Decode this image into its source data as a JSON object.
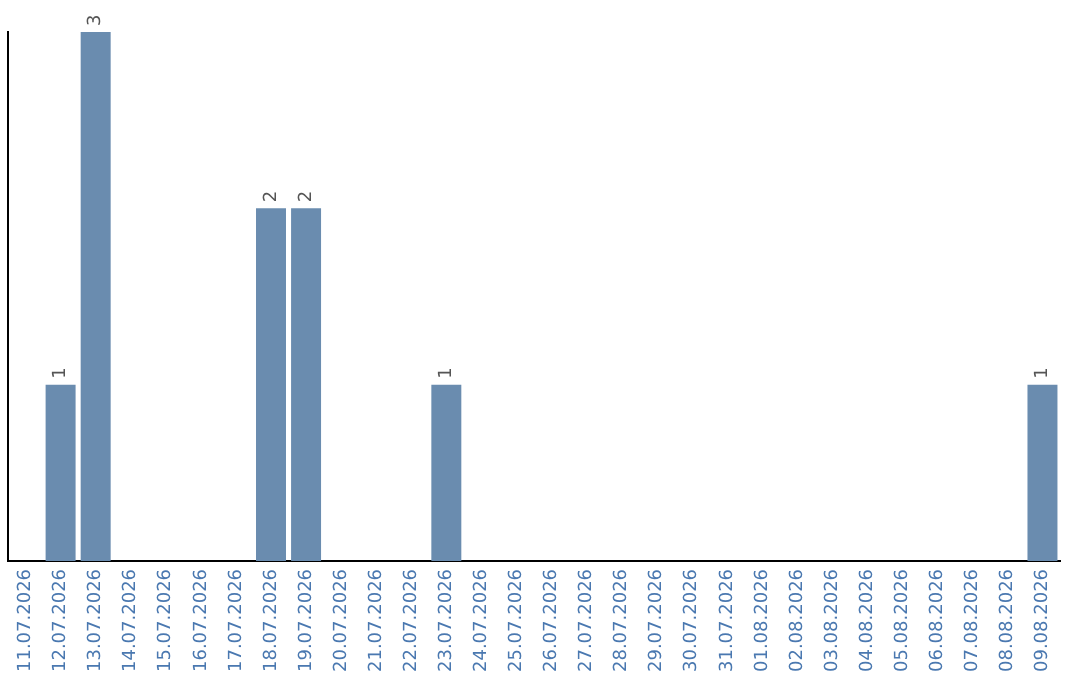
{
  "chart_data": {
    "type": "bar",
    "categories": [
      "11.07.2026",
      "12.07.2026",
      "13.07.2026",
      "14.07.2026",
      "15.07.2026",
      "16.07.2026",
      "17.07.2026",
      "18.07.2026",
      "19.07.2026",
      "20.07.2026",
      "21.07.2026",
      "22.07.2026",
      "23.07.2026",
      "24.07.2026",
      "25.07.2026",
      "26.07.2026",
      "27.07.2026",
      "28.07.2026",
      "29.07.2026",
      "30.07.2026",
      "31.07.2026",
      "01.08.2026",
      "02.08.2026",
      "03.08.2026",
      "04.08.2026",
      "05.08.2026",
      "06.08.2026",
      "07.08.2026",
      "08.08.2026",
      "09.08.2026"
    ],
    "values": [
      0,
      1,
      3,
      0,
      0,
      0,
      0,
      2,
      2,
      0,
      0,
      0,
      1,
      0,
      0,
      0,
      0,
      0,
      0,
      0,
      0,
      0,
      0,
      0,
      0,
      0,
      0,
      0,
      0,
      1
    ],
    "value_labels": [
      null,
      "1",
      "3",
      null,
      null,
      null,
      null,
      "2",
      "2",
      null,
      null,
      null,
      "1",
      null,
      null,
      null,
      null,
      null,
      null,
      null,
      null,
      null,
      null,
      null,
      null,
      null,
      null,
      null,
      null,
      "1"
    ],
    "color": "#6a8caf",
    "grid": false,
    "legend": false,
    "tick_labels": "x"
  }
}
